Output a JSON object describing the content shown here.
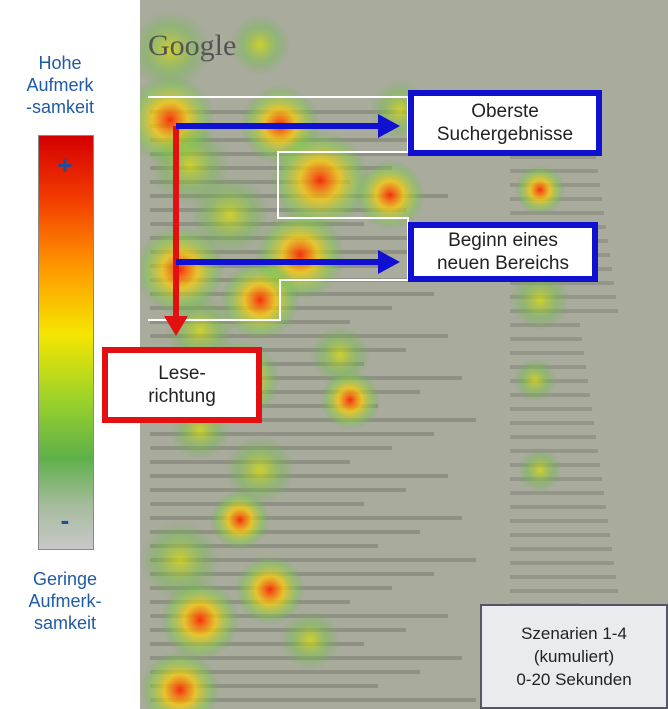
{
  "legend": {
    "top_label": [
      "Hohe",
      "Aufmerk",
      "-samkeit"
    ],
    "high_symbol": "+",
    "low_symbol": "-",
    "bottom_label": [
      "Geringe",
      "Aufmerk-",
      "samkeit"
    ]
  },
  "screenshot": {
    "logo": "Google"
  },
  "annotations": {
    "top_results": [
      "Oberste",
      "Suchergebnisse"
    ],
    "new_section": [
      "Beginn eines",
      "neuen Bereichs"
    ],
    "reading_direction": [
      "Lese-",
      "richtung"
    ],
    "info": [
      "Szenarien 1-4",
      "(kumuliert)",
      "0-20 Sekunden"
    ]
  }
}
